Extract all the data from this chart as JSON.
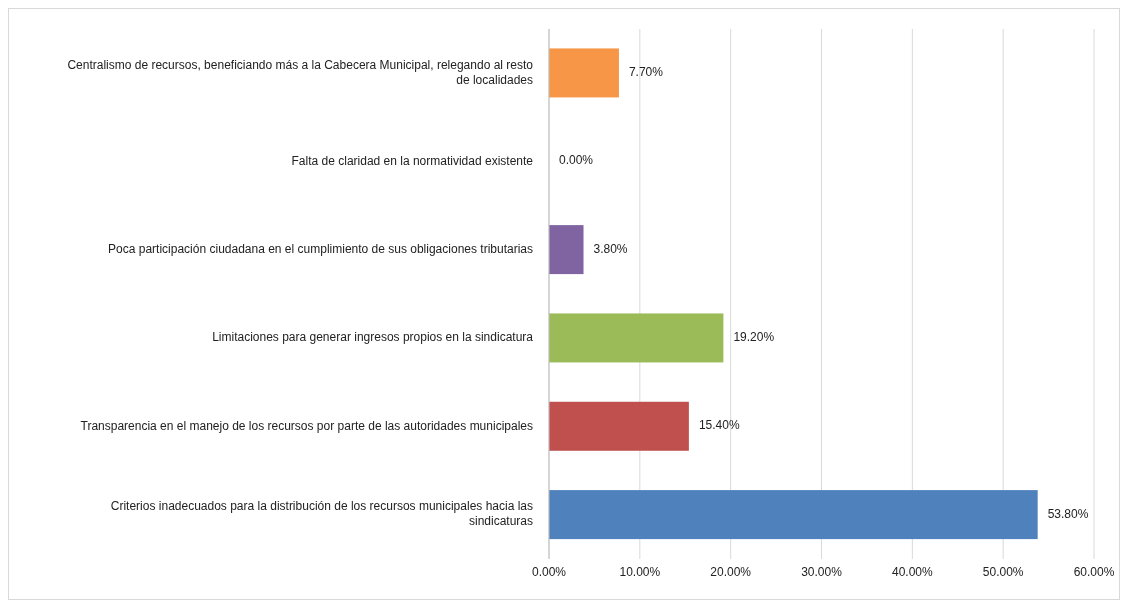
{
  "chart_data": {
    "type": "bar",
    "orientation": "horizontal",
    "categories": [
      "Centralismo de recursos, beneficiando más a la Cabecera Municipal, relegando al resto de localidades",
      "Falta de claridad en la normatividad existente",
      "Poca participación ciudadana en el cumplimiento de sus obligaciones tributarias",
      "Limitaciones para generar ingresos propios en la sindicatura",
      "Transparencia en el manejo de los recursos por parte de las autoridades municipales",
      "Criterios inadecuados para la distribución de los recursos municipales hacia las sindicaturas"
    ],
    "values": [
      7.7,
      0,
      3.8,
      19.2,
      15.4,
      53.8
    ],
    "colors": [
      "#f79646",
      "#f2f2f2",
      "#8064a2",
      "#9bbb59",
      "#c0504d",
      "#4f81bd"
    ],
    "value_labels": [
      "7.70%",
      "0.00%",
      "3.80%",
      "19.20%",
      "15.40%",
      "53.80%"
    ],
    "xlim": [
      0,
      60
    ],
    "xticks": [
      {
        "value": 0,
        "label": "0.00%"
      },
      {
        "value": 10,
        "label": "10.00%"
      },
      {
        "value": 20,
        "label": "20.00%"
      },
      {
        "value": 30,
        "label": "30.00%"
      },
      {
        "value": 40,
        "label": "40.00%"
      },
      {
        "value": 50,
        "label": "50.00%"
      },
      {
        "value": 60,
        "label": "60.00%"
      }
    ],
    "grid": "x"
  }
}
